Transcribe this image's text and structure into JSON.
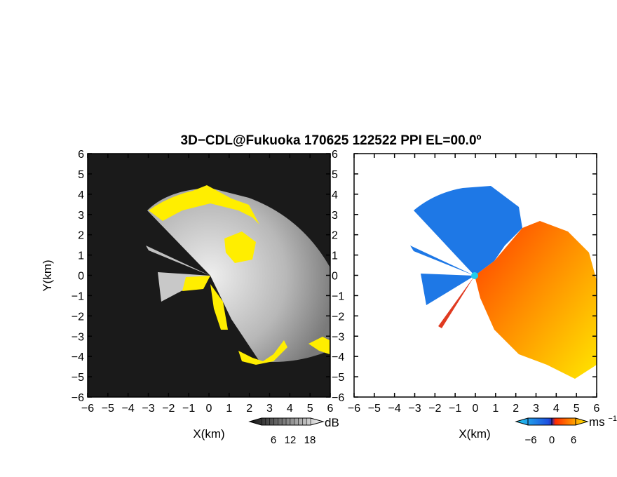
{
  "chart_data": [
    {
      "type": "heatmap",
      "title": "3D−CDL@Fukuoka 170625 122522 PPI EL=00.0º",
      "quantity_unit": "dB",
      "xlabel": "X(km)",
      "ylabel": "Y(km)",
      "xlim": [
        -6,
        6
      ],
      "ylim": [
        -6,
        6
      ],
      "x_ticks": [
        "−6",
        "−5",
        "−4",
        "−3",
        "−2",
        "−1",
        "0",
        "1",
        "2",
        "3",
        "4",
        "5",
        "6"
      ],
      "y_ticks": [
        "6",
        "5",
        "4",
        "3",
        "2",
        "1",
        "0",
        "−1",
        "−2",
        "−3",
        "−4",
        "−5",
        "−6"
      ],
      "colorbar": {
        "label": "dB",
        "ticks": [
          "6",
          "12",
          "18"
        ],
        "range": [
          0,
          24
        ]
      },
      "grid": false,
      "background_color": "#1a1a1a",
      "highlight_color": "#ffee00"
    },
    {
      "type": "heatmap",
      "quantity_unit": "ms⁻¹",
      "xlabel": "X(km)",
      "xlim": [
        -6,
        6
      ],
      "ylim": [
        -6,
        6
      ],
      "x_ticks": [
        "−6",
        "−5",
        "−4",
        "−3",
        "−2",
        "−1",
        "0",
        "1",
        "2",
        "3",
        "4",
        "5",
        "6"
      ],
      "y_ticks": [
        "6",
        "5",
        "4",
        "3",
        "2",
        "1",
        "0",
        "−1",
        "−2",
        "−3",
        "−4",
        "−5",
        "−6"
      ],
      "colorbar": {
        "label": "ms",
        "label_exponent": "−1",
        "ticks": [
          "−6",
          "0",
          "6"
        ],
        "range": [
          -9,
          9
        ]
      },
      "grid": false,
      "colors": {
        "negative": "#1e78e6",
        "zero": "#2a2ab0",
        "positive": "#ff4a00",
        "high": "#ffee00"
      }
    }
  ]
}
